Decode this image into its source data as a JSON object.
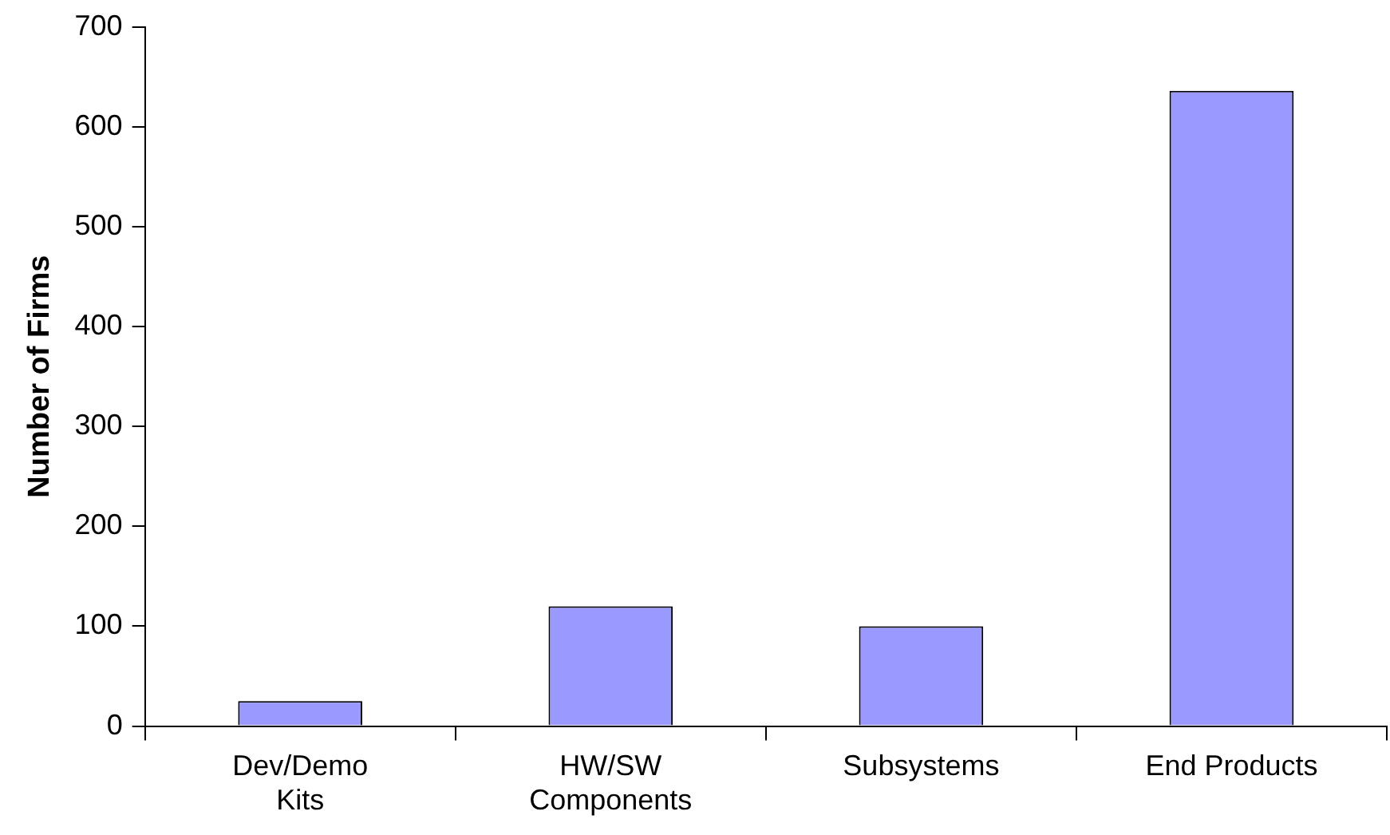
{
  "chart_data": {
    "type": "bar",
    "ylabel": "Number of Firms",
    "categories": [
      "Dev/Demo Kits",
      "HW/SW Components",
      "Subsystems",
      "End Products"
    ],
    "values": [
      25,
      120,
      100,
      636
    ],
    "color": "#9999ff",
    "ylim": [
      0,
      700
    ],
    "yticks": [
      0,
      100,
      200,
      300,
      400,
      500,
      600,
      700
    ],
    "grid": false,
    "legend": false
  }
}
